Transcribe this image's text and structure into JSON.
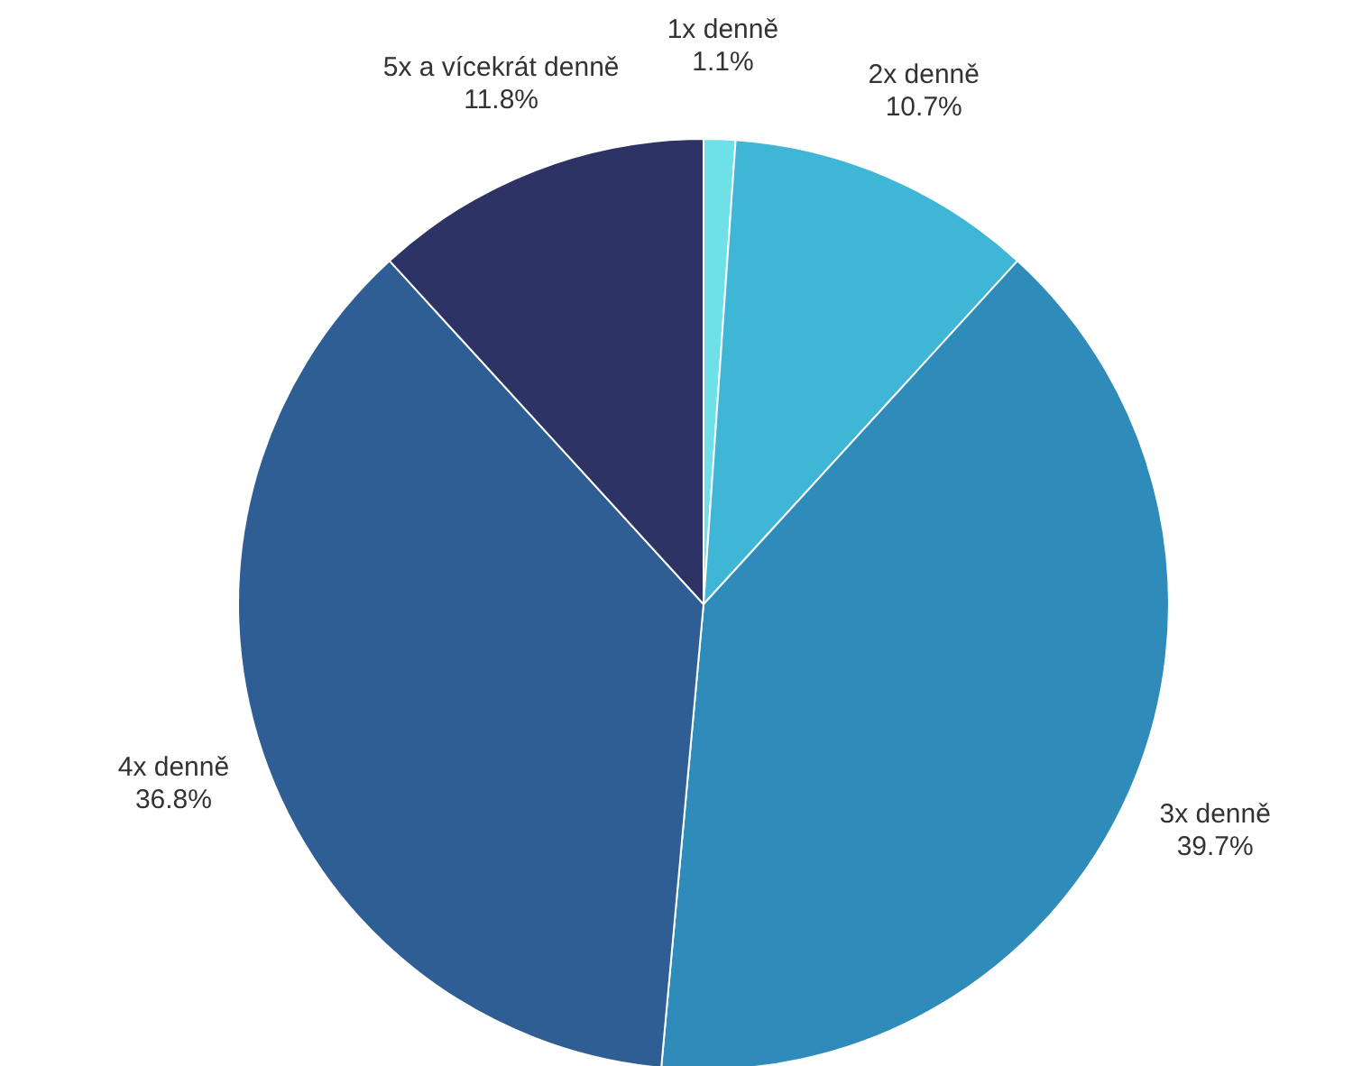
{
  "chart_data": {
    "type": "pie",
    "categories": [
      "1x denně",
      "2x denně",
      "3x denně",
      "4x denně",
      "5x a vícekrát denně"
    ],
    "values": [
      1.1,
      10.7,
      39.7,
      36.8,
      11.8
    ],
    "value_labels": [
      "1.1%",
      "10.7%",
      "39.7%",
      "36.8%",
      "11.8%"
    ],
    "colors": [
      "#6ee0e8",
      "#40b6d6",
      "#2e8bba",
      "#2e5e94",
      "#2e3366"
    ]
  }
}
